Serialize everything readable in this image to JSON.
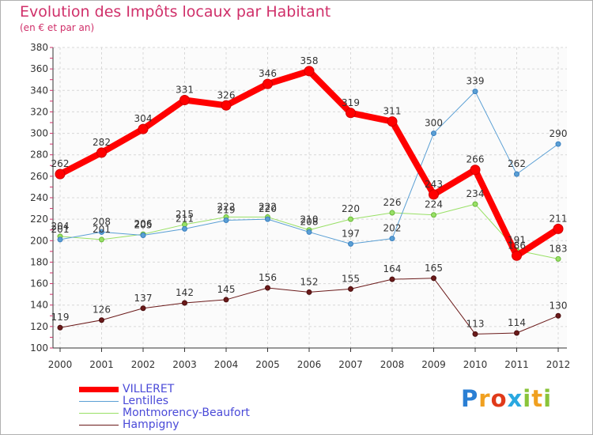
{
  "chart_data": {
    "type": "line",
    "title": "Evolution des Impôts locaux par Habitant",
    "subtitle": "(en € et par an)",
    "xlabel": "",
    "ylabel": "",
    "x": [
      "2000",
      "2001",
      "2002",
      "2003",
      "2004",
      "2005",
      "2006",
      "2007",
      "2008",
      "2009",
      "2010",
      "2011",
      "2012"
    ],
    "ylim": [
      100,
      380
    ],
    "yticks": [
      "100",
      "120",
      "140",
      "160",
      "180",
      "200",
      "220",
      "240",
      "260",
      "280",
      "300",
      "320",
      "340",
      "360",
      "380"
    ],
    "grid": true,
    "legend_position": "bottom-left",
    "series": [
      {
        "name": "VILLERET",
        "color": "#ff0000",
        "values": [
          262,
          282,
          304,
          331,
          326,
          346,
          358,
          319,
          311,
          243,
          266,
          186,
          211
        ]
      },
      {
        "name": "Lentilles",
        "color": "#5a9fd4",
        "values": [
          201,
          208,
          205,
          211,
          219,
          220,
          208,
          197,
          202,
          300,
          339,
          262,
          290
        ]
      },
      {
        "name": "Montmorency-Beaufort",
        "color": "#99e066",
        "values": [
          204,
          201,
          206,
          215,
          222,
          222,
          210,
          220,
          226,
          224,
          234,
          191,
          183
        ]
      },
      {
        "name": "Hampigny",
        "color": "#6b1a1a",
        "values": [
          119,
          126,
          137,
          142,
          145,
          156,
          152,
          155,
          164,
          165,
          113,
          114,
          130
        ]
      }
    ]
  },
  "logo": {
    "letters": [
      {
        "ch": "P",
        "color": "#2a7fd4"
      },
      {
        "ch": "r",
        "color": "#f0a020"
      },
      {
        "ch": "o",
        "color": "#e03a1a"
      },
      {
        "ch": "x",
        "color": "#29a8e0"
      },
      {
        "ch": "i",
        "color": "#8ac43a"
      },
      {
        "ch": "t",
        "color": "#f0a020"
      },
      {
        "ch": "i",
        "color": "#8ac43a"
      }
    ]
  }
}
